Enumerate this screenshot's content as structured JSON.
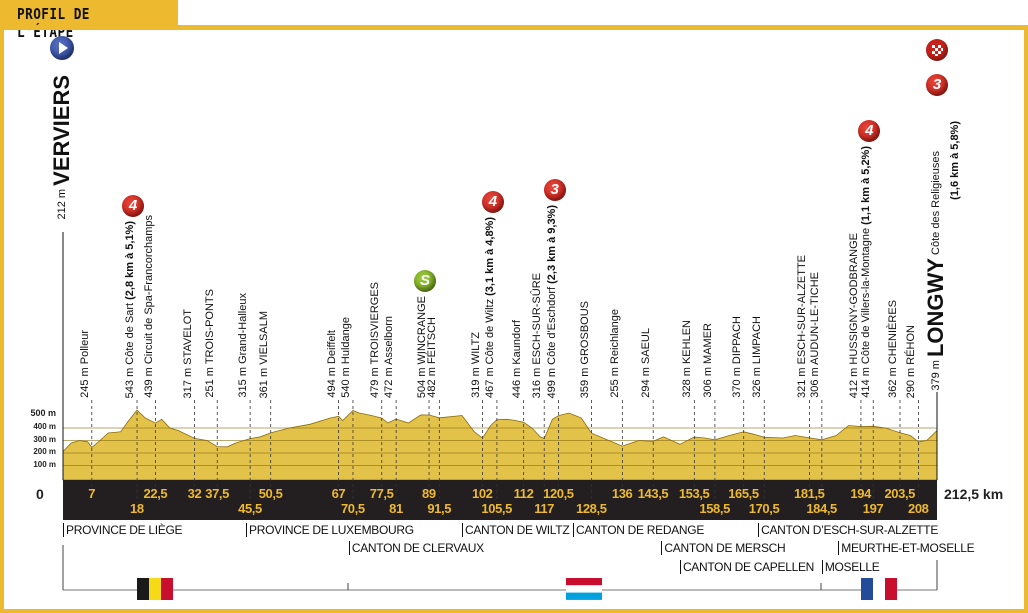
{
  "header": {
    "title": "PROFIL DE L'ÉTAPE"
  },
  "start": {
    "name": "VERVIERS",
    "altitude": "212 m",
    "icon": "start-play-icon"
  },
  "finish": {
    "name": "LONGWY",
    "altitude": "379 m",
    "climb": "Côte des Religieuses",
    "climb_detail": "(1,6 km à 5,8%)",
    "category": "3",
    "icon": "checkered-flag-icon"
  },
  "colors": {
    "frame": "#EDB92E",
    "profile": "#E3C24A",
    "bar": "#231F20",
    "km_text": "#EDB92E",
    "climb_badge": "#C8231A",
    "sprint_badge": "#7CAE28"
  },
  "chart_data": {
    "type": "area",
    "xlabel": "",
    "ylabel": "",
    "xlim": [
      0,
      212.5
    ],
    "ylim": [
      0,
      500
    ],
    "yticks": [
      "100 m",
      "200 m",
      "300 m",
      "400 m",
      "500 m"
    ],
    "zero_label": "0",
    "total_label": "212,5 km",
    "profile": [
      [
        0,
        212
      ],
      [
        2,
        280
      ],
      [
        4,
        300
      ],
      [
        6,
        290
      ],
      [
        7,
        245
      ],
      [
        9,
        300
      ],
      [
        11,
        360
      ],
      [
        14,
        370
      ],
      [
        16,
        460
      ],
      [
        18,
        543
      ],
      [
        20,
        480
      ],
      [
        22.5,
        439
      ],
      [
        24,
        470
      ],
      [
        26,
        400
      ],
      [
        28,
        380
      ],
      [
        32,
        317
      ],
      [
        35,
        300
      ],
      [
        37.5,
        251
      ],
      [
        40,
        250
      ],
      [
        42,
        280
      ],
      [
        45.5,
        315
      ],
      [
        48,
        330
      ],
      [
        50.5,
        361
      ],
      [
        55,
        400
      ],
      [
        60,
        430
      ],
      [
        65,
        480
      ],
      [
        67,
        494
      ],
      [
        68,
        460
      ],
      [
        70.5,
        540
      ],
      [
        72,
        520
      ],
      [
        75,
        500
      ],
      [
        77.5,
        479
      ],
      [
        79,
        440
      ],
      [
        81,
        472
      ],
      [
        84,
        440
      ],
      [
        87,
        505
      ],
      [
        89,
        504
      ],
      [
        91.5,
        482
      ],
      [
        94,
        490
      ],
      [
        97,
        500
      ],
      [
        100,
        370
      ],
      [
        102,
        319
      ],
      [
        104,
        420
      ],
      [
        105.5,
        467
      ],
      [
        108,
        470
      ],
      [
        110,
        460
      ],
      [
        112,
        446
      ],
      [
        114,
        400
      ],
      [
        116,
        330
      ],
      [
        117,
        316
      ],
      [
        119,
        470
      ],
      [
        120.5,
        499
      ],
      [
        123,
        520
      ],
      [
        126,
        480
      ],
      [
        128.5,
        359
      ],
      [
        132,
        310
      ],
      [
        136,
        255
      ],
      [
        140,
        300
      ],
      [
        143.5,
        294
      ],
      [
        146,
        330
      ],
      [
        150,
        270
      ],
      [
        153.5,
        328
      ],
      [
        156,
        320
      ],
      [
        158.5,
        306
      ],
      [
        162,
        340
      ],
      [
        165.5,
        370
      ],
      [
        168,
        350
      ],
      [
        170.5,
        326
      ],
      [
        175,
        320
      ],
      [
        178,
        340
      ],
      [
        181.5,
        321
      ],
      [
        184.5,
        306
      ],
      [
        188,
        340
      ],
      [
        191,
        420
      ],
      [
        194,
        412
      ],
      [
        197,
        414
      ],
      [
        200,
        400
      ],
      [
        203.5,
        362
      ],
      [
        206,
        340
      ],
      [
        208,
        290
      ],
      [
        210,
        300
      ],
      [
        212.5,
        379
      ]
    ],
    "waypoints": [
      {
        "km": "7",
        "alt": "245 m",
        "name": "Polleur",
        "row": 1
      },
      {
        "km": "18",
        "alt": "543 m",
        "name": "Côte de Sart",
        "detail": "(2,8 km à 5,1%)",
        "cat": "4",
        "row": 2
      },
      {
        "km": "22,5",
        "alt": "439 m",
        "name": "Circuit de Spa-Francorchamps",
        "row": 1
      },
      {
        "km": "32",
        "alt": "317 m",
        "name": "STAVELOT",
        "row": 1
      },
      {
        "km": "37,5",
        "alt": "251 m",
        "name": "TROIS-PONTS",
        "row": 1
      },
      {
        "km": "45,5",
        "alt": "315 m",
        "name": "Grand-Halleux",
        "row": 2
      },
      {
        "km": "50,5",
        "alt": "361 m",
        "name": "VIELSALM",
        "row": 1
      },
      {
        "km": "67",
        "alt": "494 m",
        "name": "Deiffelt",
        "row": 1
      },
      {
        "km": "70,5",
        "alt": "540 m",
        "name": "Huldange",
        "row": 2
      },
      {
        "km": "77,5",
        "alt": "479 m",
        "name": "TROISVIERGES",
        "row": 1
      },
      {
        "km": "81",
        "alt": "472 m",
        "name": "Asselborn",
        "row": 2
      },
      {
        "km": "89",
        "alt": "504 m",
        "name": "WINCRANGE",
        "sprint": "S",
        "row": 1
      },
      {
        "km": "91,5",
        "alt": "482 m",
        "name": "FÉITSCH",
        "row": 2
      },
      {
        "km": "102",
        "alt": "319 m",
        "name": "WILTZ",
        "row": 1
      },
      {
        "km": "105,5",
        "alt": "467 m",
        "name": "Côte de Wiltz",
        "detail": "(3,1 km à 4,8%)",
        "cat": "4",
        "row": 2
      },
      {
        "km": "112",
        "alt": "446 m",
        "name": "Kaundorf",
        "row": 1
      },
      {
        "km": "117",
        "alt": "316 m",
        "name": "ESCH-SUR-SÛRE",
        "row": 2
      },
      {
        "km": "120,5",
        "alt": "499 m",
        "name": "Côte d'Eschdorf",
        "detail": "(2,3 km à 9,3%)",
        "cat": "3",
        "row": 1
      },
      {
        "km": "128,5",
        "alt": "359 m",
        "name": "GROSBOUS",
        "row": 2
      },
      {
        "km": "136",
        "alt": "255 m",
        "name": "Reichlange",
        "row": 1
      },
      {
        "km": "143,5",
        "alt": "294 m",
        "name": "SAEUL",
        "row": 1
      },
      {
        "km": "153,5",
        "alt": "328 m",
        "name": "KEHLEN",
        "row": 1
      },
      {
        "km": "158,5",
        "alt": "306 m",
        "name": "MAMER",
        "row": 2
      },
      {
        "km": "165,5",
        "alt": "370 m",
        "name": "DIPPACH",
        "row": 1
      },
      {
        "km": "170,5",
        "alt": "326 m",
        "name": "LIMPACH",
        "row": 2
      },
      {
        "km": "181,5",
        "alt": "321 m",
        "name": "ESCH-SUR-ALZETTE",
        "row": 1
      },
      {
        "km": "184,5",
        "alt": "306 m",
        "name": "AUDUN-LE-TICHE",
        "row": 2
      },
      {
        "km": "194",
        "alt": "412 m",
        "name": "HUSSIGNY-GODBRANGE",
        "row": 1
      },
      {
        "km": "197",
        "alt": "414 m",
        "name": "Côte de Villers-la-Montagne",
        "detail": "(1,1 km à 5,2%)",
        "cat": "4",
        "row": 2
      },
      {
        "km": "203,5",
        "alt": "362 m",
        "name": "CHENIÈRES",
        "row": 1
      },
      {
        "km": "208",
        "alt": "290 m",
        "name": "RÉHON",
        "row": 2
      }
    ],
    "regions": [
      {
        "label": "PROVINCE DE LIÈGE",
        "km": 0,
        "row": 1
      },
      {
        "label": "PROVINCE DE LUXEMBOURG",
        "km": 44.5,
        "row": 1
      },
      {
        "label": "CANTON DE CLERVAUX",
        "km": 69.5,
        "row": 2
      },
      {
        "label": "CANTON DE WILTZ",
        "km": 97,
        "row": 1
      },
      {
        "label": "CANTON DE REDANGE",
        "km": 124,
        "row": 1
      },
      {
        "label": "CANTON DE MERSCH",
        "km": 145.5,
        "row": 2
      },
      {
        "label": "CANTON DE CAPELLEN",
        "km": 150,
        "row": 3
      },
      {
        "label": "CANTON D’ESCH-SUR-ALZETTE",
        "km": 169,
        "row": 1
      },
      {
        "label": "MEURTHE-ET-MOSELLE",
        "km": 188.5,
        "row": 2
      },
      {
        "label": "MOSELLE",
        "km": 184.5,
        "row": 3
      }
    ],
    "flags": [
      {
        "country": "belgium",
        "colors": [
          "#1a1a1a",
          "#F6D917",
          "#C8102E"
        ]
      },
      {
        "country": "luxembourg",
        "colors": [
          "#C8102E",
          "#FFFFFF",
          "#00A1DE"
        ]
      },
      {
        "country": "france",
        "colors": [
          "#244A9A",
          "#FFFFFF",
          "#C8102E"
        ]
      }
    ]
  }
}
